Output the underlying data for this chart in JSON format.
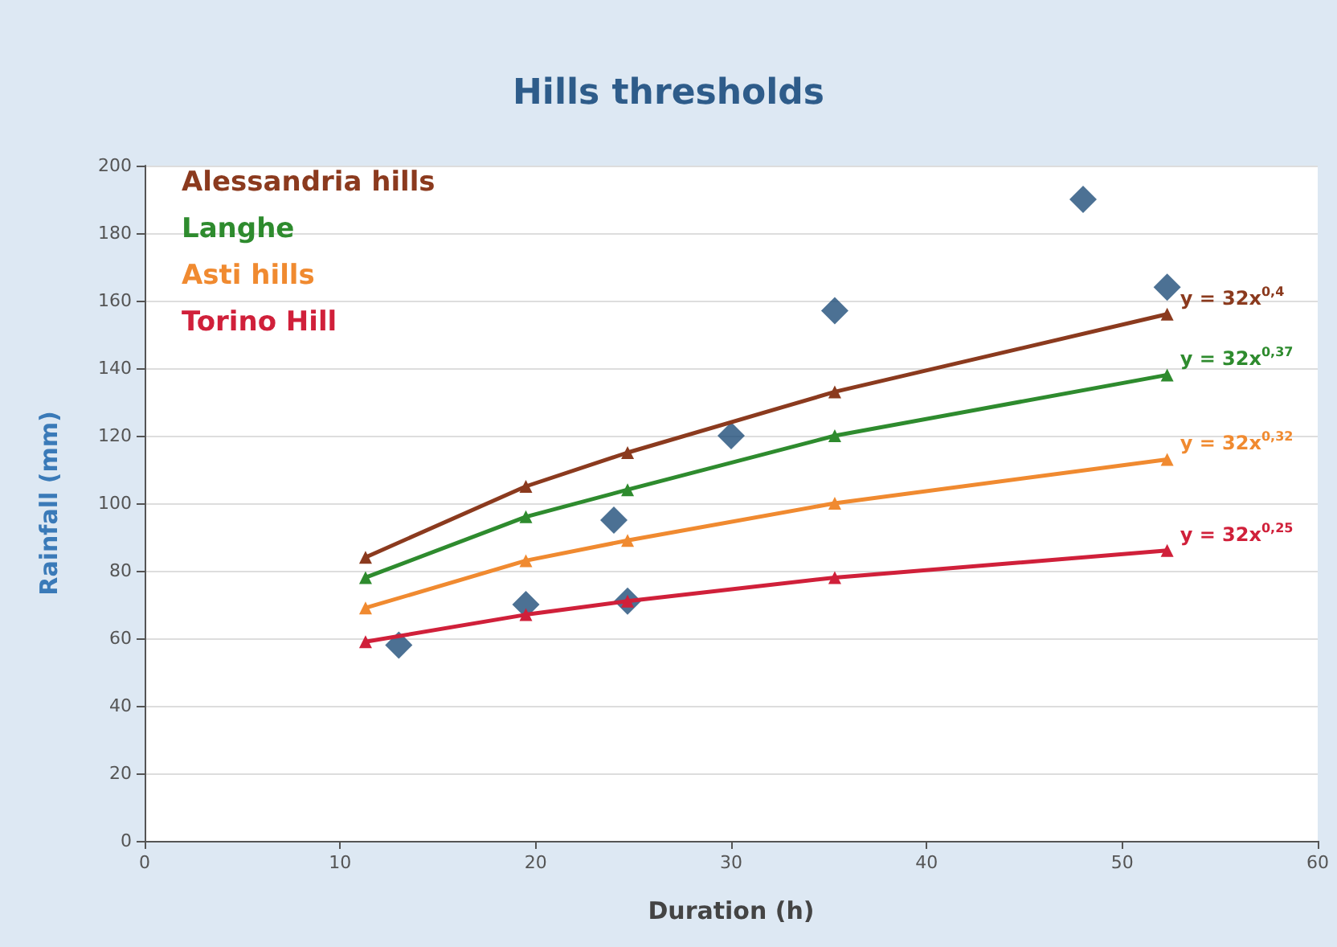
{
  "chart_data": {
    "type": "line",
    "title": "Hills thresholds",
    "xlabel": "Duration (h)",
    "ylabel": "Rainfall (mm)",
    "xlim": [
      0,
      60
    ],
    "xticks": [
      0,
      10,
      20,
      30,
      40,
      50,
      60
    ],
    "ylim": [
      0,
      200
    ],
    "yticks": [
      0,
      20,
      40,
      60,
      80,
      100,
      120,
      140,
      160,
      180,
      200
    ],
    "grid": "y",
    "legend": "top left",
    "line_style": "solid",
    "series": [
      {
        "name": "Alessandria hills",
        "color": "#8b3a1e",
        "marker": "triangle",
        "x": [
          11.3,
          19.5,
          24.7,
          35.3,
          52.3
        ],
        "values": [
          84,
          105,
          115,
          133,
          156
        ]
      },
      {
        "name": "Langhe",
        "color": "#2e8b2e",
        "marker": "triangle",
        "x": [
          11.3,
          19.5,
          24.7,
          35.3,
          52.3
        ],
        "values": [
          78,
          96,
          104,
          120,
          138
        ]
      },
      {
        "name": "Asti hills",
        "color": "#f08a30",
        "marker": "triangle",
        "x": [
          11.3,
          19.5,
          24.7,
          35.3,
          52.3
        ],
        "values": [
          69,
          83,
          89,
          100,
          113
        ]
      },
      {
        "name": "Torino Hill",
        "color": "#d0203a",
        "marker": "triangle",
        "x": [
          11.3,
          19.5,
          24.7,
          35.3,
          52.3
        ],
        "values": [
          59,
          67,
          71,
          78,
          86
        ]
      },
      {
        "type": "scatter",
        "color": "#1f4e79",
        "marker": "diamond",
        "x": [
          13,
          19.5,
          24,
          24.7,
          30,
          35.3,
          48,
          52.3
        ],
        "values": [
          58,
          70,
          95,
          71,
          120,
          157,
          190,
          164
        ]
      }
    ],
    "annotations": [
      "y = 32x$^{0,4}$",
      "y = 32x$^{0,37}$",
      "y = 32x$^{0,32}$",
      "y = 32x$^{0,25}$"
    ]
  }
}
